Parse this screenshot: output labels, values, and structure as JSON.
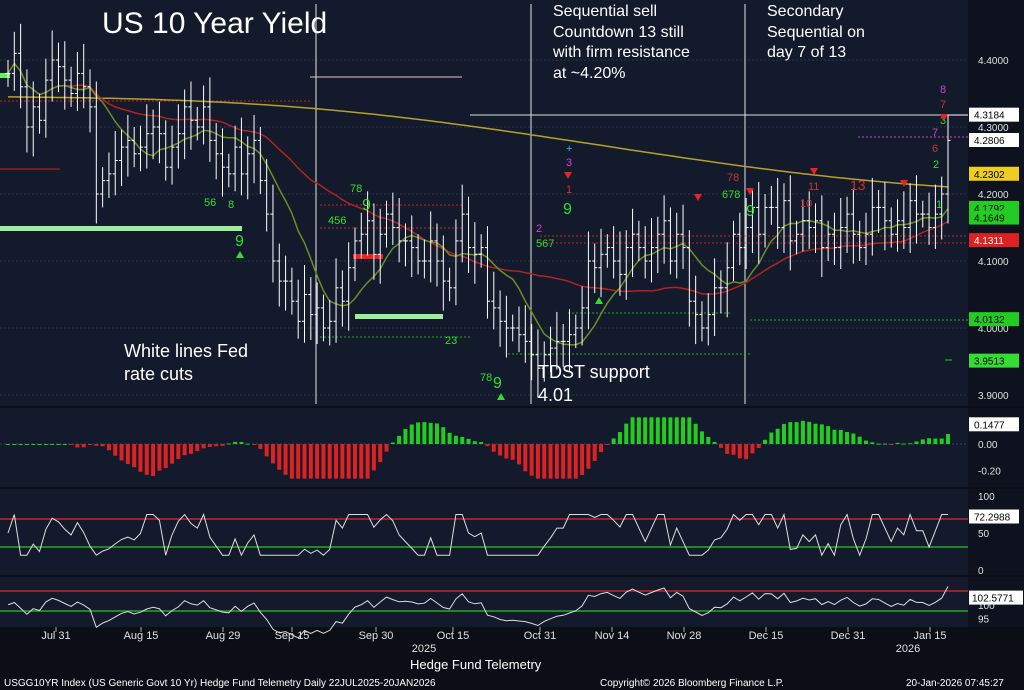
{
  "title": "US 10 Year Yield",
  "annotations": {
    "seq_sell": [
      "Sequential sell",
      "Countdown 13 still",
      "with firm resistance",
      "at ~4.20%"
    ],
    "secondary": [
      "Secondary",
      "Sequential on",
      "day 7 of 13"
    ],
    "fed": [
      "White lines Fed",
      "rate cuts"
    ],
    "tdst": [
      "TDST support",
      "4.01"
    ]
  },
  "footer": {
    "left": "USGG10YR Index (US Generic Govt 10 Yr) Hedge Fund Telemetry Daily 22JUL2025-20JAN2026",
    "center": "Hedge Fund Telemetry",
    "copyright": "Copyright© 2026 Bloomberg Finance L.P.",
    "timestamp": "20-Jan-2026 07:45:27"
  },
  "colors": {
    "background": "#0b0e14",
    "price": "#ffffff",
    "ma_short": "#6b8e23",
    "ma_mid": "#b22222",
    "ma_long": "#b8a02a",
    "setup_buy": "#33dd33",
    "setup_sell": "#cc3333",
    "countdown": "#cc44cc",
    "histogram_up": "#22cc22",
    "histogram_down": "#dd2222",
    "guide_red": "#cc2222",
    "guide_green": "#22aa22"
  },
  "chart_data": [
    {
      "type": "ohlc",
      "title": "US 10 Year Yield",
      "x_tick_labels": [
        "Jul 31",
        "Aug 15",
        "Aug 29",
        "Sep 15",
        "Sep 30",
        "Oct 15",
        "Oct 31",
        "Nov 14",
        "Nov 28",
        "Dec 15",
        "Dec 31",
        "Jan 15"
      ],
      "year_labels": [
        "2025",
        "2026"
      ],
      "y_ticks": [
        "4.4000",
        "4.3000",
        "4.2000",
        "4.1000",
        "4.0000",
        "3.9000"
      ],
      "ylim": [
        3.88,
        4.46
      ],
      "close": [
        4.38,
        4.41,
        4.36,
        4.3,
        4.33,
        4.31,
        4.37,
        4.4,
        4.39,
        4.37,
        4.35,
        4.38,
        4.36,
        4.33,
        4.2,
        4.22,
        4.23,
        4.25,
        4.27,
        4.28,
        4.26,
        4.27,
        4.29,
        4.3,
        4.29,
        4.24,
        4.27,
        4.29,
        4.33,
        4.31,
        4.3,
        4.33,
        4.28,
        4.26,
        4.24,
        4.23,
        4.27,
        4.23,
        4.26,
        4.28,
        4.22,
        4.17,
        4.1,
        4.07,
        4.07,
        4.04,
        4.01,
        4.05,
        4.02,
        4.03,
        4.0,
        4.01,
        4.06,
        4.04,
        4.09,
        4.13,
        4.14,
        4.16,
        4.11,
        4.14,
        4.17,
        4.15,
        4.13,
        4.13,
        4.12,
        4.1,
        4.1,
        4.13,
        4.1,
        4.07,
        4.06,
        4.13,
        4.17,
        4.12,
        4.11,
        4.12,
        4.04,
        4.03,
        4.01,
        4.0,
        4.0,
        3.99,
        3.98,
        3.96,
        3.94,
        3.96,
        3.97,
        3.98,
        3.98,
        3.99,
        4.0,
        4.03,
        4.1,
        4.09,
        4.11,
        4.12,
        4.1,
        4.08,
        4.12,
        4.14,
        4.12,
        4.1,
        4.12,
        4.14,
        4.16,
        4.1,
        4.14,
        4.12,
        4.04,
        4.02,
        4.0,
        4.02,
        4.06,
        4.06,
        4.09,
        4.14,
        4.12,
        4.15,
        4.18,
        4.14,
        4.18,
        4.18,
        4.15,
        4.19,
        4.13,
        4.14,
        4.16,
        4.15,
        4.16,
        4.12,
        4.14,
        4.12,
        4.15,
        4.17,
        4.14,
        4.12,
        4.14,
        4.18,
        4.18,
        4.16,
        4.14,
        4.16,
        4.15,
        4.19,
        4.17,
        4.17,
        4.15,
        4.17,
        4.2,
        4.28
      ],
      "ma_short_last": 4.1649,
      "ma_mid_last": 4.1311,
      "ma_long_last": 4.2302,
      "price_labels": [
        "4.3184",
        "4.2806",
        "4.2302",
        "4.1792",
        "4.1649",
        "4.1311",
        "4.0132",
        "3.9513"
      ],
      "resistance_levels": [
        4.3184,
        4.2806
      ],
      "tdst_support": 4.01,
      "annotations": [
        "Sequential sell Countdown 13 still with firm resistance at ~4.20%",
        "Secondary Sequential on day 7 of 13",
        "White lines Fed rate cuts",
        "TDST support 4.01"
      ],
      "sequential_markers": [
        "9",
        "13",
        "8",
        "7",
        "6",
        "5",
        "4",
        "3",
        "2",
        "1"
      ]
    },
    {
      "type": "bar",
      "name": "momentum histogram",
      "y_ticks": [
        "0.00",
        "-0.20"
      ],
      "last_label": "0.1477",
      "ylim": [
        -0.28,
        0.24
      ]
    },
    {
      "type": "line",
      "name": "oscillator",
      "y_ticks": [
        "100",
        "50",
        "0"
      ],
      "last_label": "72.2988",
      "ylim": [
        0,
        100
      ],
      "upper_band": 72,
      "lower_band": 30
    },
    {
      "type": "line",
      "name": "ratio",
      "y_ticks": [
        "100",
        "95"
      ],
      "last_label": "102.5771",
      "ylim": [
        93,
        109
      ]
    }
  ]
}
